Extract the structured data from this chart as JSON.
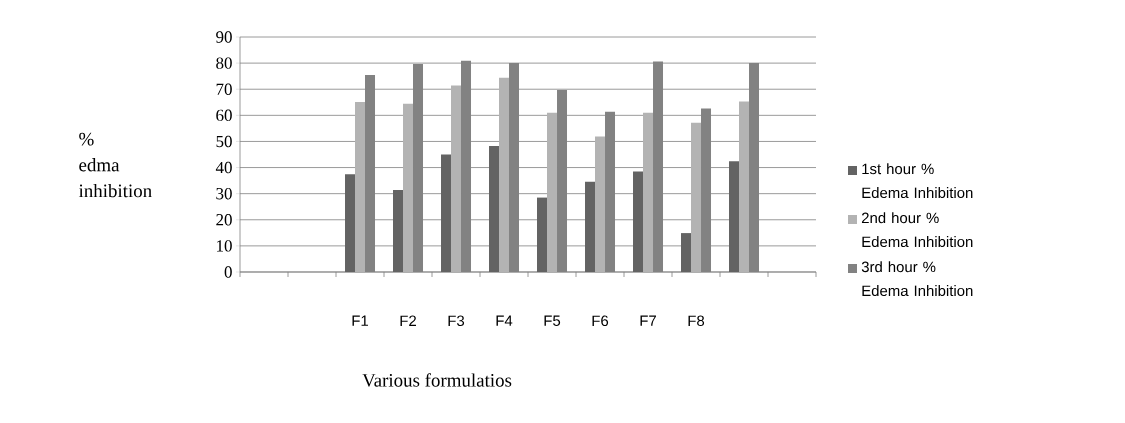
{
  "chart_data": {
    "type": "bar",
    "xlabel": "Various formulatios",
    "ylabel": "% edma inhibition",
    "categories": [
      null,
      null,
      "F1",
      "F2",
      "F3",
      "F4",
      "F5",
      "F6",
      "F7",
      "F8",
      null,
      null
    ],
    "series": [
      {
        "name": "1st hour % Edema Inhibition",
        "color": "#636363",
        "values": [
          null,
          null,
          37.4,
          31.4,
          45.0,
          48.3,
          28.5,
          34.6,
          38.5,
          14.9,
          42.4,
          null
        ]
      },
      {
        "name": "2nd hour % Edema Inhibition",
        "color": "#b3b3b3",
        "values": [
          null,
          null,
          65.1,
          64.4,
          71.4,
          74.4,
          61.0,
          51.9,
          61.0,
          57.2,
          65.3,
          null
        ]
      },
      {
        "name": "3rd hour % Edema Inhibition",
        "color": "#828282",
        "values": [
          null,
          null,
          75.4,
          79.7,
          80.9,
          80.0,
          69.7,
          61.4,
          80.6,
          62.6,
          80.0,
          null
        ]
      }
    ],
    "ylim": [
      0,
      90
    ],
    "yticks": [
      0,
      10,
      20,
      30,
      40,
      50,
      60,
      70,
      80,
      90
    ],
    "grid": "y",
    "legend": "right"
  }
}
